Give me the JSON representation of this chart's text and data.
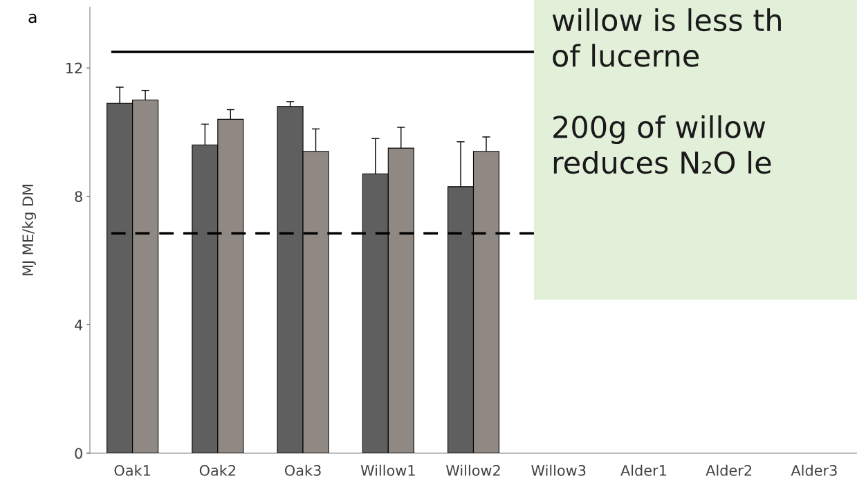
{
  "chart_data": {
    "type": "bar",
    "categories": [
      "Oak1",
      "Oak2",
      "Oak3",
      "Willow1",
      "Willow2",
      "Willow3",
      "Alder1",
      "Alder2",
      "Alder3"
    ],
    "series": [
      {
        "color": "#5f5f5f",
        "values": [
          10.9,
          9.6,
          10.8,
          8.7,
          8.3,
          null,
          null,
          null,
          null
        ],
        "errors": [
          0.5,
          0.65,
          0.15,
          1.1,
          1.4,
          null,
          null,
          null,
          null
        ]
      },
      {
        "color": "#8f8883",
        "values": [
          11.0,
          10.4,
          9.4,
          9.5,
          9.4,
          null,
          null,
          null,
          null
        ],
        "errors": [
          0.3,
          0.3,
          0.7,
          0.65,
          0.45,
          null,
          null,
          null,
          null
        ]
      }
    ],
    "ylabel": "MJ ME/kg DM",
    "ylim": [
      0,
      13.9
    ],
    "yticks": [
      0,
      4,
      8,
      12
    ],
    "ref_lines": [
      {
        "axis": "y",
        "value": 12.5,
        "color": "#000000",
        "line_style": "solid"
      },
      {
        "axis": "y",
        "value": 6.85,
        "color": "#000000",
        "line_style": "dashed"
      }
    ],
    "annotations": [
      "a",
      "willow is less th\nof lucerne\n\n200g of willow\nreduces N₂O le"
    ],
    "grid": false
  }
}
